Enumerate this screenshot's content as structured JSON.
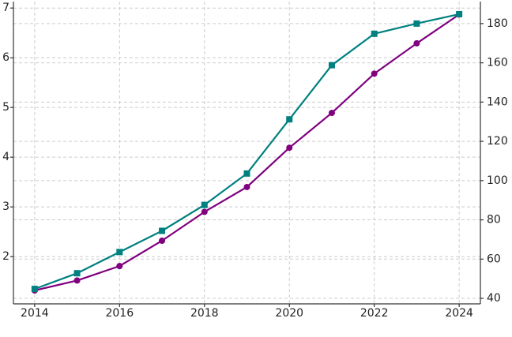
{
  "chart_data": {
    "type": "line",
    "x": [
      2014,
      2015,
      2016,
      2017,
      2018,
      2019,
      2020,
      2021,
      2022,
      2023,
      2024
    ],
    "series": [
      {
        "color": "#800080",
        "marker": "circle",
        "values": [
          1.32,
          1.52,
          1.81,
          2.32,
          2.9,
          3.4,
          4.19,
          4.89,
          5.68,
          6.29,
          6.87
        ]
      },
      {
        "color": "#008080",
        "marker": "square",
        "axis": "y2",
        "values": [
          44.8,
          52.8,
          63.6,
          74.4,
          87.6,
          103.6,
          131.2,
          158.8,
          174.8,
          180,
          184.8
        ]
      }
    ],
    "xlim": [
      2013.5,
      2024.5
    ],
    "xticks": [
      2014,
      2016,
      2018,
      2020,
      2022,
      2024
    ],
    "ylim": [
      1.05,
      7.13
    ],
    "yticks": [
      2,
      3,
      4,
      5,
      6,
      7
    ],
    "y2lim": [
      37.2,
      191.2
    ],
    "y2ticks": [
      40,
      60,
      80,
      100,
      120,
      140,
      160,
      180
    ],
    "grid": true
  }
}
